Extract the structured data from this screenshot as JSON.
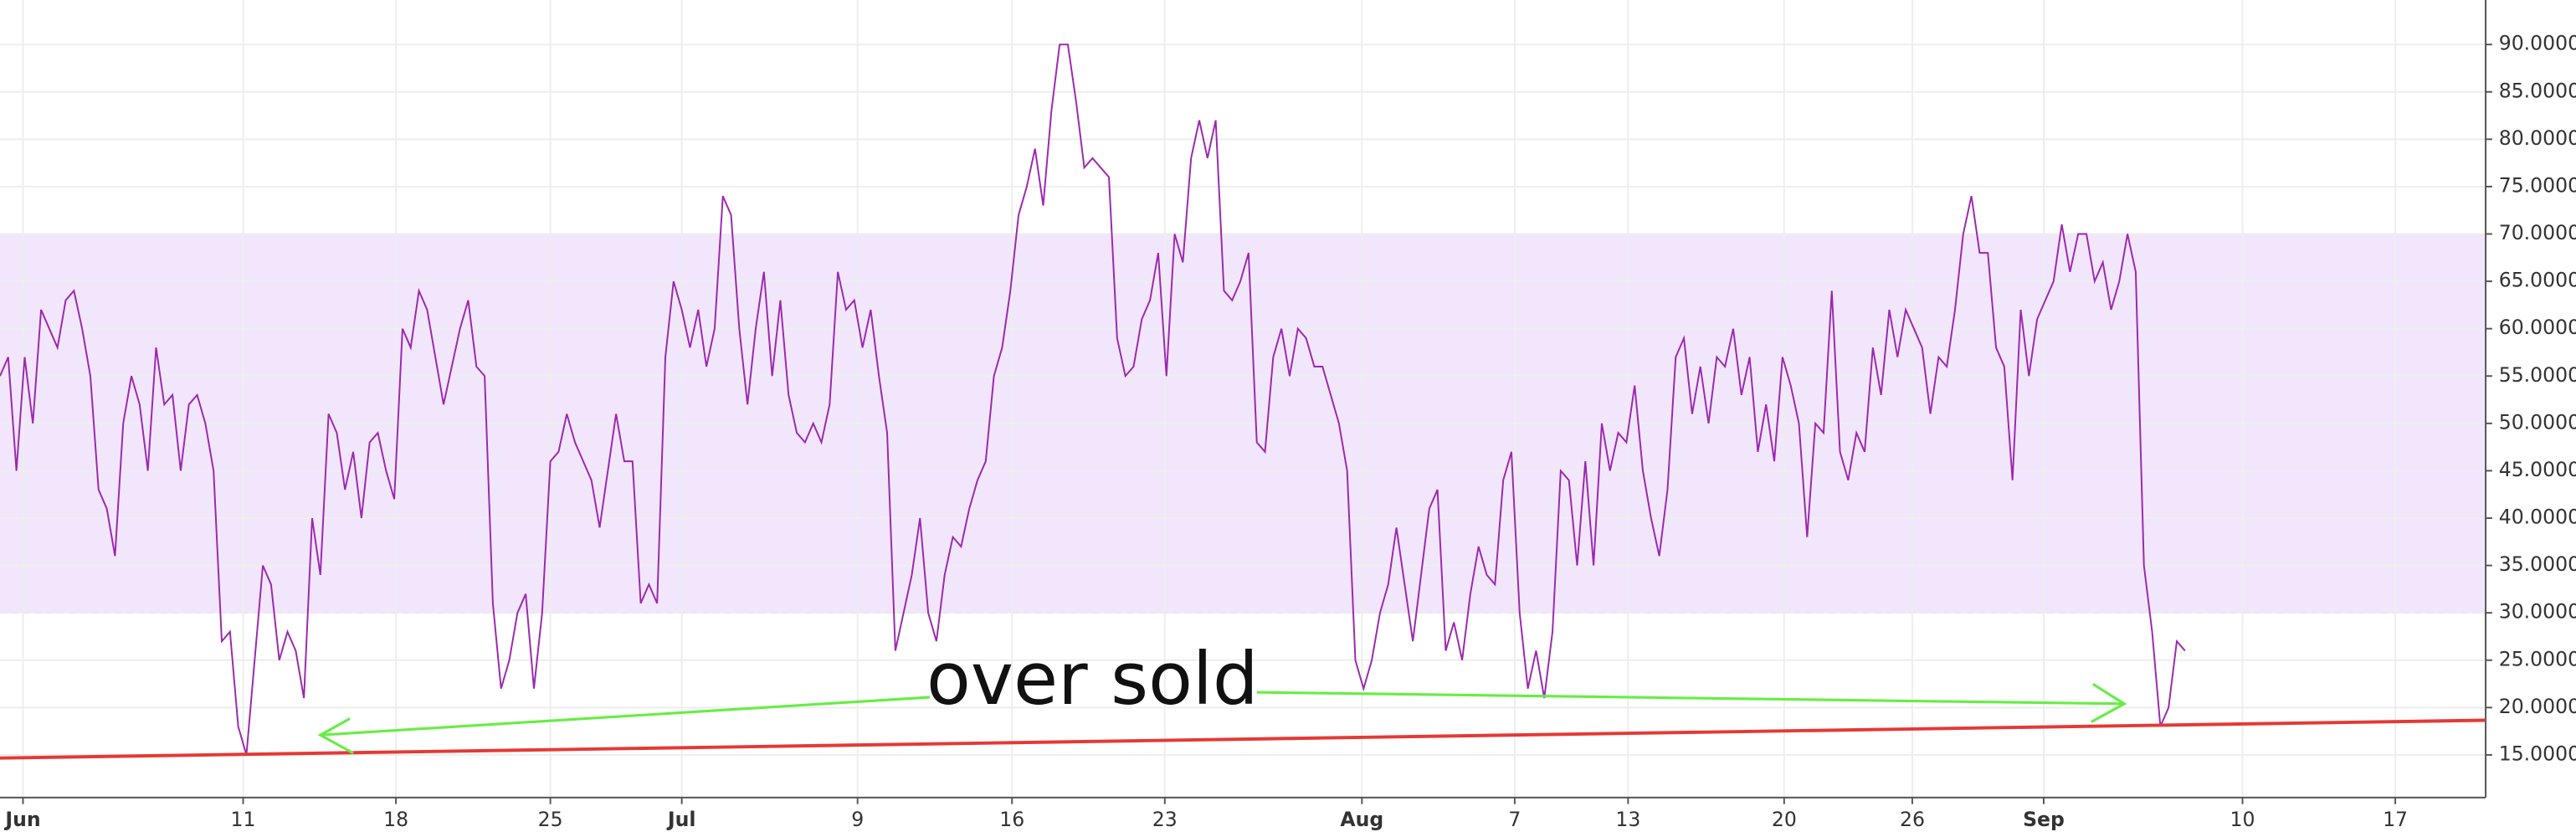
{
  "chart_data": {
    "type": "line",
    "color": "#9c27b0",
    "values": [
      55,
      57,
      45,
      57,
      50,
      62,
      60,
      58,
      63,
      64,
      60,
      55,
      43,
      41,
      36,
      50,
      55,
      52,
      45,
      58,
      52,
      53,
      45,
      52,
      53,
      50,
      45,
      27,
      28,
      18,
      15,
      25,
      35,
      33,
      25,
      28,
      26,
      21,
      40,
      34,
      51,
      49,
      43,
      47,
      40,
      48,
      49,
      45,
      42,
      60,
      58,
      64,
      62,
      57,
      52,
      56,
      60,
      63,
      56,
      55,
      31,
      22,
      25,
      30,
      32,
      22,
      30,
      46,
      47,
      51,
      48,
      46,
      44,
      39,
      45,
      51,
      46,
      46,
      31,
      33,
      31,
      57,
      65,
      62,
      58,
      62,
      56,
      60,
      74,
      72,
      60,
      52,
      60,
      66,
      55,
      63,
      53,
      49,
      48,
      50,
      48,
      52,
      66,
      62,
      63,
      58,
      62,
      55,
      49,
      26,
      30,
      34,
      40,
      30,
      27,
      34,
      38,
      37,
      41,
      44,
      46,
      55,
      58,
      64,
      72,
      75,
      79,
      73,
      83,
      90,
      90,
      84,
      77,
      78,
      77,
      76,
      59,
      55,
      56,
      61,
      63,
      68,
      55,
      70,
      67,
      78,
      82,
      78,
      82,
      64,
      63,
      65,
      68,
      48,
      47,
      57,
      60,
      55,
      60,
      59,
      56,
      56,
      53,
      50,
      45,
      25,
      22,
      25,
      30,
      33,
      39,
      33,
      27,
      34,
      41,
      43,
      26,
      29,
      25,
      32,
      37,
      34,
      33,
      44,
      47,
      30,
      22,
      26,
      21,
      28,
      45,
      44,
      35,
      46,
      35,
      50,
      45,
      49,
      48,
      54,
      45,
      40,
      36,
      43,
      57,
      59,
      51,
      56,
      50,
      57,
      56,
      60,
      53,
      57,
      47,
      52,
      46,
      57,
      54,
      50,
      38,
      50,
      49,
      64,
      47,
      44,
      49,
      47,
      58,
      53,
      62,
      57,
      62,
      60,
      58,
      51,
      57,
      56,
      62,
      70,
      74,
      68,
      68,
      58,
      56,
      44,
      62,
      55,
      61,
      63,
      65,
      71,
      66,
      70,
      70,
      65,
      67,
      62,
      65,
      70,
      66,
      35,
      28,
      18,
      20,
      27,
      26
    ],
    "xlim": [
      0,
      302.6
    ],
    "xticks": [
      {
        "value": 2.8,
        "label": "Jun"
      },
      {
        "value": 29.6,
        "label": "11"
      },
      {
        "value": 48.2,
        "label": "18"
      },
      {
        "value": 67,
        "label": "25"
      },
      {
        "value": 83,
        "label": "Jul"
      },
      {
        "value": 104.4,
        "label": "9"
      },
      {
        "value": 123.2,
        "label": "16"
      },
      {
        "value": 141.8,
        "label": "23"
      },
      {
        "value": 165.8,
        "label": "Aug"
      },
      {
        "value": 184.4,
        "label": "7"
      },
      {
        "value": 198.2,
        "label": "13"
      },
      {
        "value": 217.2,
        "label": "20"
      },
      {
        "value": 232.8,
        "label": "26"
      },
      {
        "value": 248.8,
        "label": "Sep"
      },
      {
        "value": 273,
        "label": "10"
      },
      {
        "value": 291.6,
        "label": "17"
      }
    ],
    "ylim": [
      10.5,
      94.7
    ],
    "yticks": [
      {
        "value": 15,
        "label": "15.0000"
      },
      {
        "value": 20,
        "label": "20.0000"
      },
      {
        "value": 25,
        "label": "25.0000"
      },
      {
        "value": 30,
        "label": "30.0000"
      },
      {
        "value": 35,
        "label": "35.0000"
      },
      {
        "value": 40,
        "label": "40.0000"
      },
      {
        "value": 45,
        "label": "45.0000"
      },
      {
        "value": 50,
        "label": "50.0000"
      },
      {
        "value": 55,
        "label": "55.0000"
      },
      {
        "value": 60,
        "label": "60.0000"
      },
      {
        "value": 65,
        "label": "65.0000"
      },
      {
        "value": 70,
        "label": "70.0000"
      },
      {
        "value": 75,
        "label": "75.0000"
      },
      {
        "value": 80,
        "label": "80.0000"
      },
      {
        "value": 85,
        "label": "85.0000"
      },
      {
        "value": 90,
        "label": "90.0000"
      }
    ],
    "band": {
      "from": 30,
      "to": 70,
      "color": "#f1e6fc"
    },
    "grid": true,
    "annotation": "over sold"
  }
}
